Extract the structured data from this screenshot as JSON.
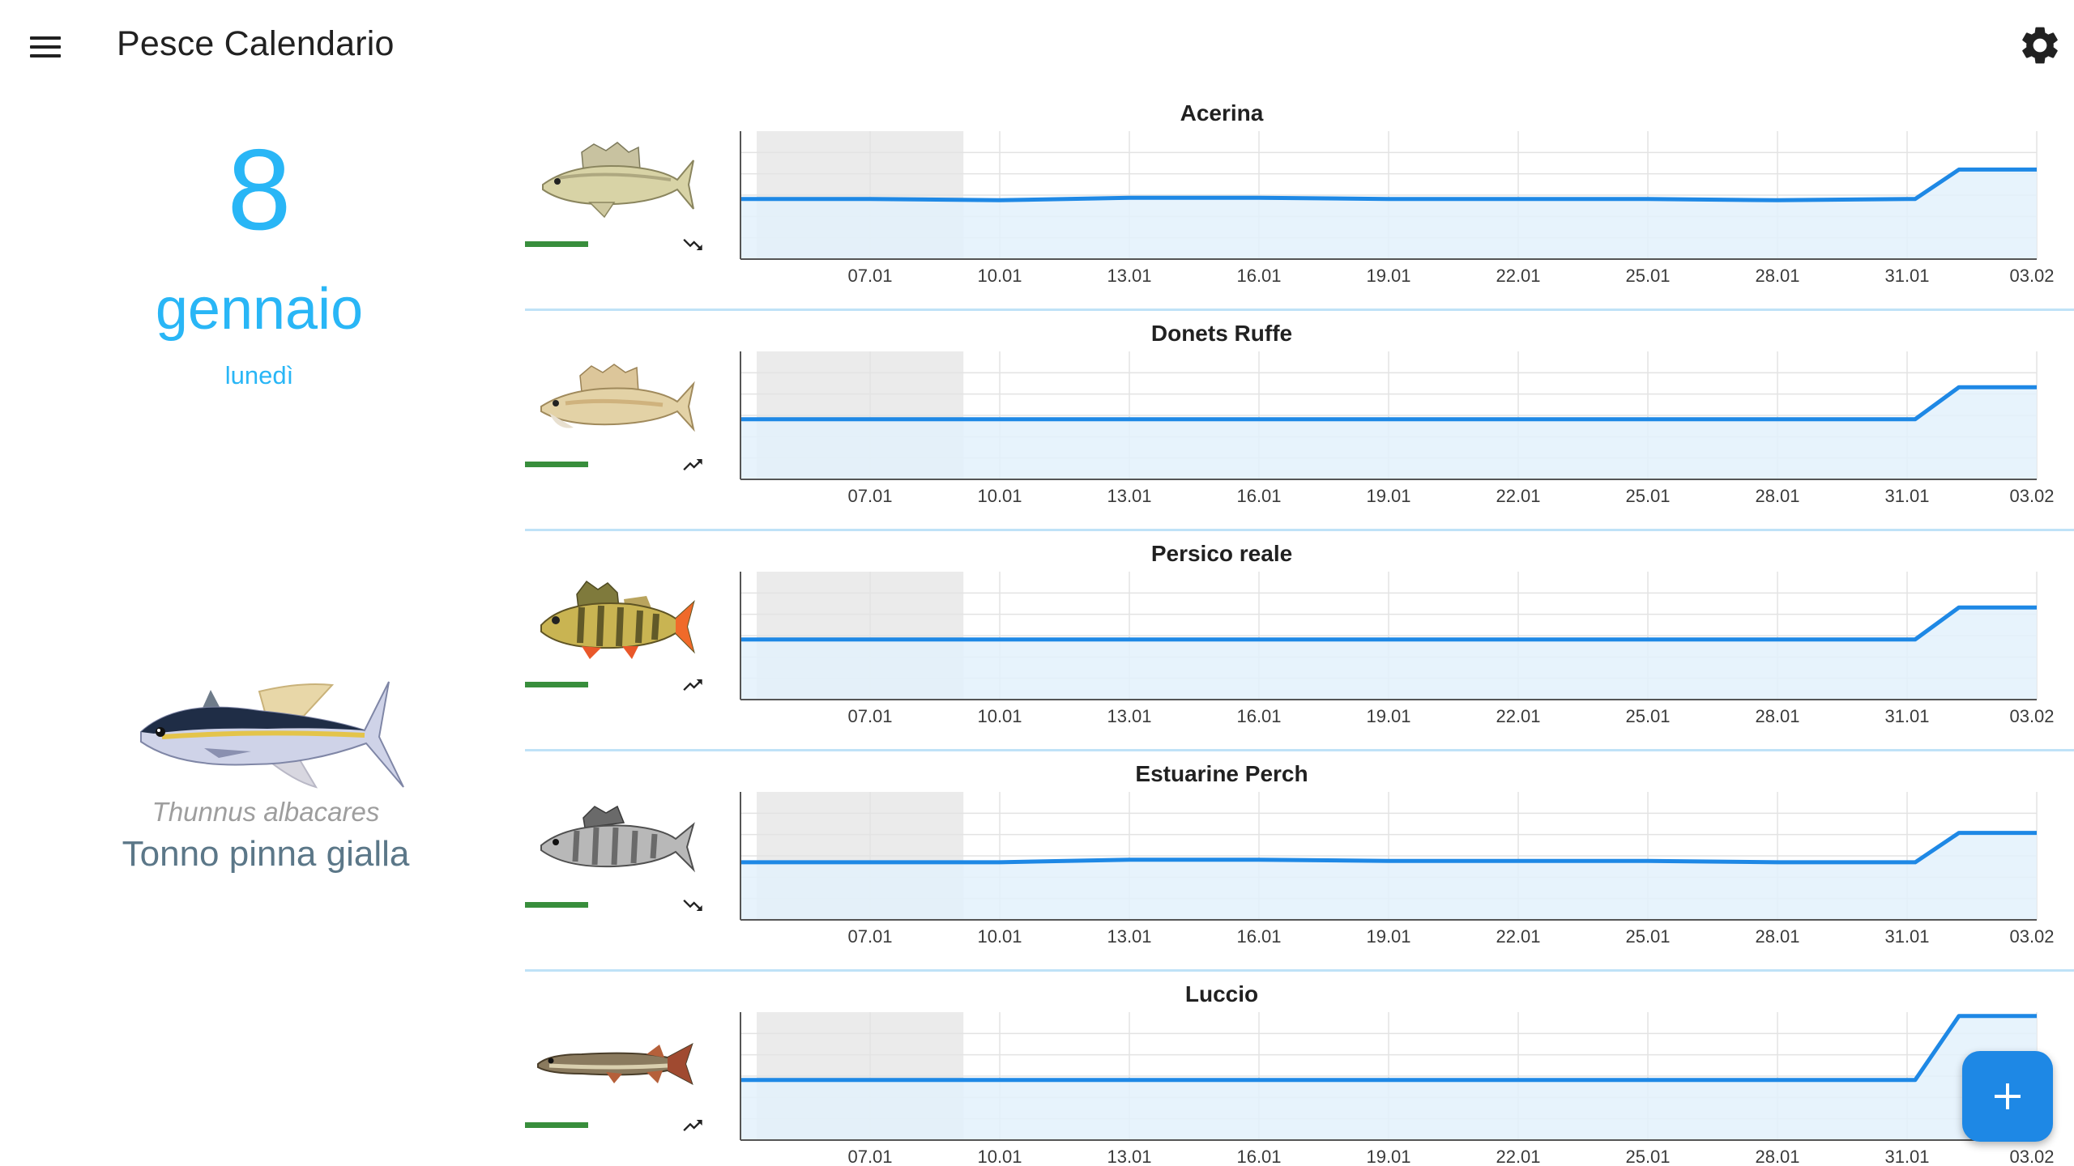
{
  "app": {
    "title": "Pesce Calendario",
    "accent_color": "#29b6f6",
    "line_color": "#1e88e5",
    "menu_icon": "hamburger-menu-icon",
    "settings_icon": "gear-icon",
    "fab_icon": "plus-icon"
  },
  "date": {
    "day": "8",
    "month": "gennaio",
    "weekday": "lunedì"
  },
  "featured": {
    "latin_name": "Thunnus albacares",
    "common_name": "Tonno pinna gialla",
    "image": "yellowfin-tuna-illustration"
  },
  "fish": [
    {
      "name": "Acerina",
      "image": "acerina-fish-illustration",
      "trend": "down",
      "activity": 0.3,
      "chart_data": {
        "type": "line",
        "x": [
          "03.01",
          "07.01",
          "10.01",
          "13.01",
          "16.01",
          "19.01",
          "22.01",
          "25.01",
          "28.01",
          "31.01",
          "03.02"
        ],
        "tick_labels": [
          "07.01",
          "10.01",
          "13.01",
          "16.01",
          "19.01",
          "22.01",
          "25.01",
          "28.01",
          "31.01",
          "03.02"
        ],
        "values": [
          0.47,
          0.47,
          0.46,
          0.48,
          0.48,
          0.47,
          0.47,
          0.47,
          0.46,
          0.47,
          0.7
        ],
        "ylim": [
          0,
          1
        ],
        "shaded_past": [
          "03.01",
          "09.01"
        ],
        "grid": true
      }
    },
    {
      "name": "Donets Ruffe",
      "image": "donets-ruffe-fish-illustration",
      "trend": "up",
      "activity": 0.3,
      "chart_data": {
        "type": "line",
        "x": [
          "03.01",
          "07.01",
          "10.01",
          "13.01",
          "16.01",
          "19.01",
          "22.01",
          "25.01",
          "28.01",
          "31.01",
          "03.02"
        ],
        "tick_labels": [
          "07.01",
          "10.01",
          "13.01",
          "16.01",
          "19.01",
          "22.01",
          "25.01",
          "28.01",
          "31.01",
          "03.02"
        ],
        "values": [
          0.47,
          0.47,
          0.47,
          0.47,
          0.47,
          0.47,
          0.47,
          0.47,
          0.47,
          0.47,
          0.72
        ],
        "ylim": [
          0,
          1
        ],
        "shaded_past": [
          "03.01",
          "09.01"
        ],
        "grid": true
      }
    },
    {
      "name": "Persico reale",
      "image": "european-perch-fish-illustration",
      "trend": "up",
      "activity": 0.3,
      "chart_data": {
        "type": "line",
        "x": [
          "03.01",
          "07.01",
          "10.01",
          "13.01",
          "16.01",
          "19.01",
          "22.01",
          "25.01",
          "28.01",
          "31.01",
          "03.02"
        ],
        "tick_labels": [
          "07.01",
          "10.01",
          "13.01",
          "16.01",
          "19.01",
          "22.01",
          "25.01",
          "28.01",
          "31.01",
          "03.02"
        ],
        "values": [
          0.47,
          0.47,
          0.47,
          0.47,
          0.47,
          0.47,
          0.47,
          0.47,
          0.47,
          0.47,
          0.72
        ],
        "ylim": [
          0,
          1
        ],
        "shaded_past": [
          "03.01",
          "09.01"
        ],
        "grid": true
      }
    },
    {
      "name": "Estuarine Perch",
      "image": "estuarine-perch-fish-illustration",
      "trend": "down",
      "activity": 0.3,
      "chart_data": {
        "type": "line",
        "x": [
          "03.01",
          "07.01",
          "10.01",
          "13.01",
          "16.01",
          "19.01",
          "22.01",
          "25.01",
          "28.01",
          "31.01",
          "03.02"
        ],
        "tick_labels": [
          "07.01",
          "10.01",
          "13.01",
          "16.01",
          "19.01",
          "22.01",
          "25.01",
          "28.01",
          "31.01",
          "03.02"
        ],
        "values": [
          0.45,
          0.45,
          0.45,
          0.47,
          0.47,
          0.46,
          0.46,
          0.46,
          0.45,
          0.45,
          0.68
        ],
        "ylim": [
          0,
          1
        ],
        "shaded_past": [
          "03.01",
          "09.01"
        ],
        "grid": true
      }
    },
    {
      "name": "Luccio",
      "image": "pike-fish-illustration",
      "trend": "up",
      "activity": 0.3,
      "chart_data": {
        "type": "line",
        "x": [
          "03.01",
          "07.01",
          "10.01",
          "13.01",
          "16.01",
          "19.01",
          "22.01",
          "25.01",
          "28.01",
          "31.01",
          "03.02"
        ],
        "tick_labels": [
          "07.01",
          "10.01",
          "13.01",
          "16.01",
          "19.01",
          "22.01",
          "25.01",
          "28.01",
          "31.01",
          "03.02"
        ],
        "values": [
          0.47,
          0.47,
          0.47,
          0.47,
          0.47,
          0.47,
          0.47,
          0.47,
          0.47,
          0.47,
          0.97
        ],
        "ylim": [
          0,
          1
        ],
        "shaded_past": [
          "03.01",
          "09.01"
        ],
        "grid": true
      }
    }
  ]
}
